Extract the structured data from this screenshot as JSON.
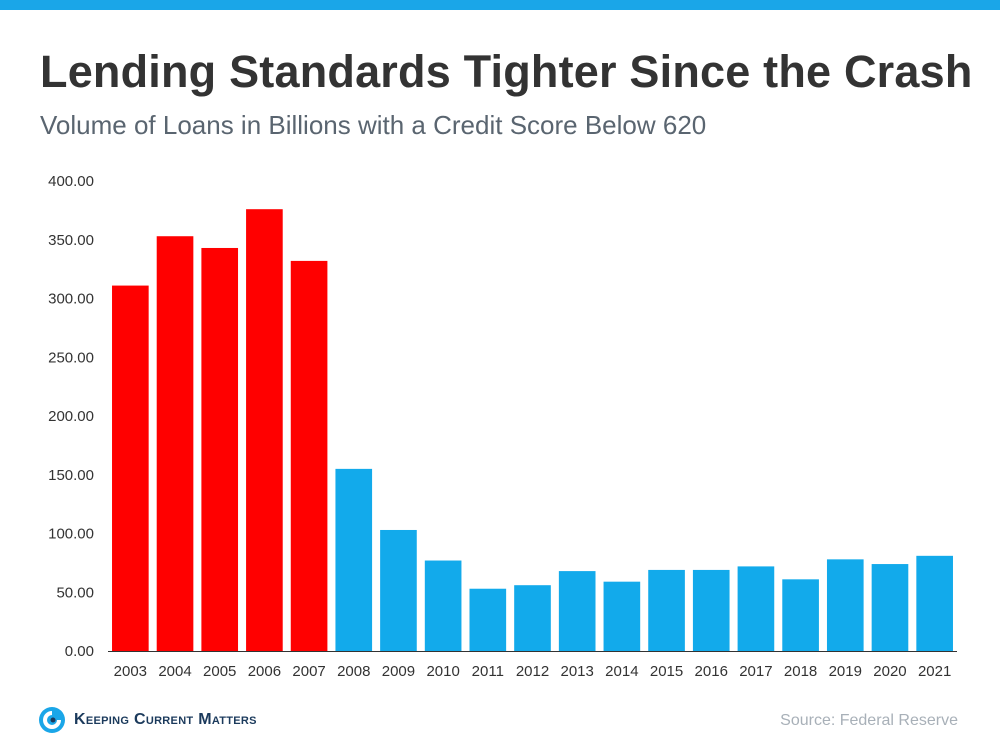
{
  "header": {
    "title": "Lending Standards Tighter Since the Crash",
    "subtitle": "Volume of Loans in Billions with a Credit Score Below 620"
  },
  "footer": {
    "brand": "Keeping Current Matters",
    "brand_icon": "kcm-logo-icon",
    "source": "Source: Federal Reserve"
  },
  "colors": {
    "accent_bar": "#1aa6e8",
    "pre_crash": "#ff0000",
    "post_crash": "#12aaeb"
  },
  "chart_data": {
    "type": "bar",
    "categories": [
      "2003",
      "2004",
      "2005",
      "2006",
      "2007",
      "2008",
      "2009",
      "2010",
      "2011",
      "2012",
      "2013",
      "2014",
      "2015",
      "2016",
      "2017",
      "2018",
      "2019",
      "2020",
      "2021"
    ],
    "values": [
      311,
      353,
      343,
      376,
      332,
      155,
      103,
      77,
      53,
      56,
      68,
      59,
      69,
      69,
      72,
      61,
      78,
      74,
      81
    ],
    "bar_colors": [
      "#ff0000",
      "#ff0000",
      "#ff0000",
      "#ff0000",
      "#ff0000",
      "#12aaeb",
      "#12aaeb",
      "#12aaeb",
      "#12aaeb",
      "#12aaeb",
      "#12aaeb",
      "#12aaeb",
      "#12aaeb",
      "#12aaeb",
      "#12aaeb",
      "#12aaeb",
      "#12aaeb",
      "#12aaeb",
      "#12aaeb"
    ],
    "yticks": [
      "0.00",
      "50.00",
      "100.00",
      "150.00",
      "200.00",
      "250.00",
      "300.00",
      "350.00",
      "400.00"
    ],
    "ylim": [
      0,
      400
    ],
    "title": "Lending Standards Tighter Since the Crash",
    "xlabel": "",
    "ylabel": "",
    "grid": false
  }
}
